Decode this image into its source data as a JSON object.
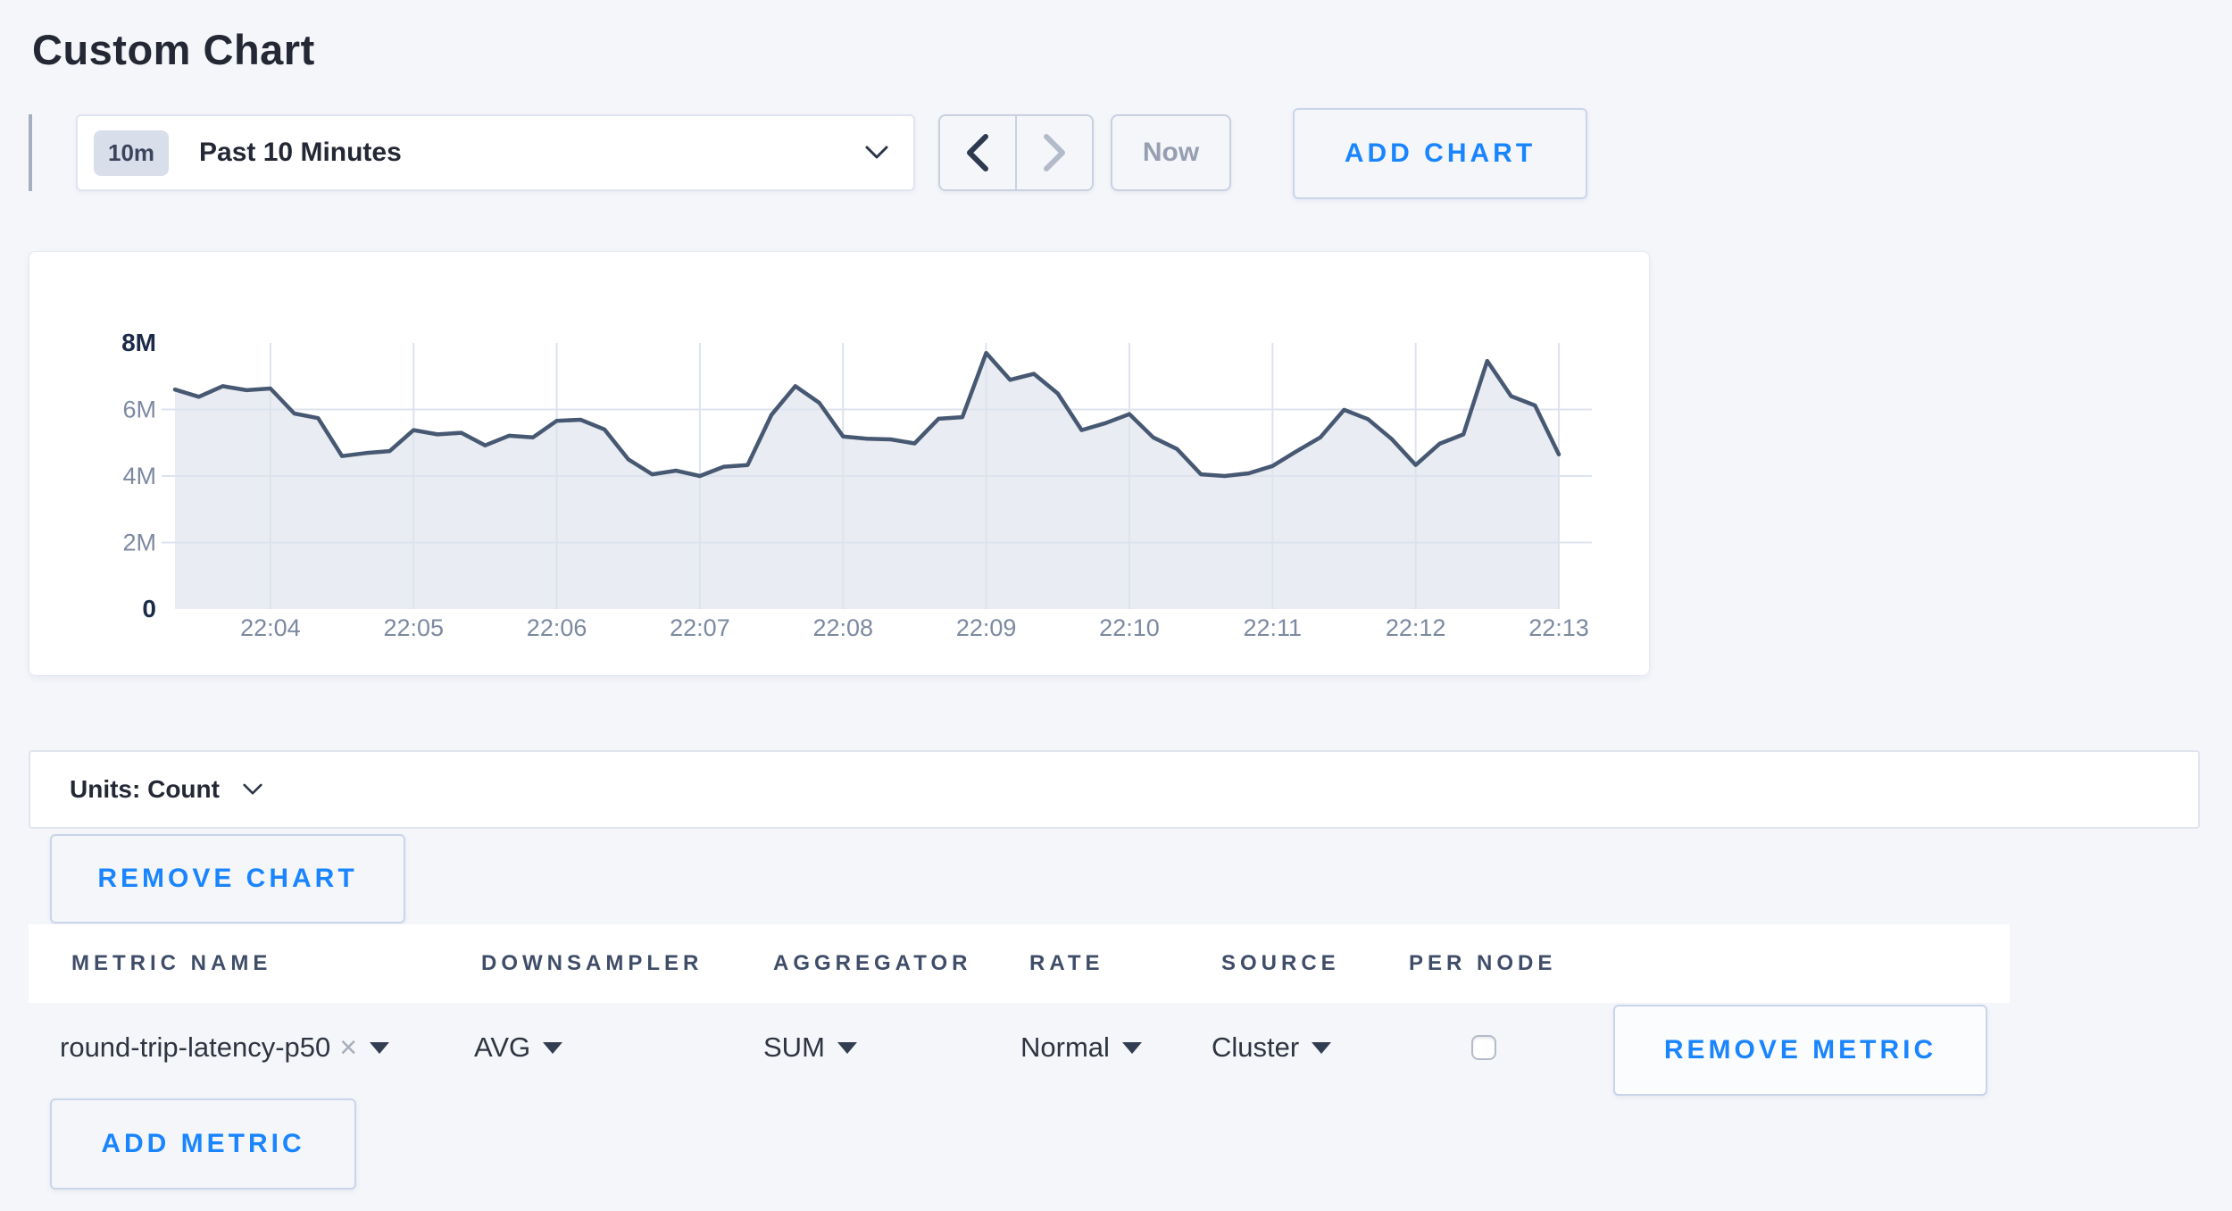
{
  "page": {
    "title": "Custom Chart"
  },
  "toolbar": {
    "time_badge": "10m",
    "time_label": "Past 10 Minutes",
    "now_label": "Now",
    "add_chart_label": "ADD CHART"
  },
  "chart_data": {
    "type": "area",
    "title": "",
    "xlabel": "",
    "ylabel": "",
    "legend": "off",
    "grid": "on",
    "x_ticks": [
      "22:04",
      "22:05",
      "22:06",
      "22:07",
      "22:08",
      "22:09",
      "22:10",
      "22:11",
      "22:12",
      "22:13"
    ],
    "first_tick_index": 4,
    "points_per_tick": 6,
    "y_ticks": [
      {
        "label": "8M",
        "value": 8,
        "emphasis": true
      },
      {
        "label": "6M",
        "value": 6,
        "emphasis": false
      },
      {
        "label": "4M",
        "value": 4,
        "emphasis": false
      },
      {
        "label": "2M",
        "value": 2,
        "emphasis": false
      },
      {
        "label": "0",
        "value": 0,
        "emphasis": true
      }
    ],
    "grid_values_millions": [
      2,
      4,
      6
    ],
    "ylim_millions": [
      0,
      8
    ],
    "series": [
      {
        "name": "round-trip-latency-p50",
        "line_color": "#475872",
        "fill_color": "#e9ecf2",
        "values_millions": [
          6.6,
          6.38,
          6.7,
          6.58,
          6.63,
          5.88,
          5.74,
          4.6,
          4.69,
          4.75,
          5.38,
          5.25,
          5.3,
          4.92,
          5.21,
          5.16,
          5.66,
          5.69,
          5.4,
          4.5,
          4.05,
          4.16,
          4.0,
          4.28,
          4.33,
          5.84,
          6.7,
          6.2,
          5.19,
          5.12,
          5.1,
          4.98,
          5.72,
          5.77,
          7.7,
          6.89,
          7.07,
          6.48,
          5.38,
          5.59,
          5.86,
          5.16,
          4.81,
          4.05,
          4.0,
          4.08,
          4.3,
          4.74,
          5.16,
          5.99,
          5.71,
          5.11,
          4.33,
          4.97,
          5.25,
          7.46,
          6.4,
          6.12,
          4.65
        ]
      }
    ],
    "grid_color": "#dde3ee"
  },
  "units_bar": {
    "label": "Units: Count"
  },
  "chart_actions": {
    "remove_chart_label": "REMOVE CHART"
  },
  "metrics_table": {
    "headers": [
      "METRIC NAME",
      "DOWNSAMPLER",
      "AGGREGATOR",
      "RATE",
      "SOURCE",
      "PER NODE"
    ],
    "row": {
      "metric_name": "round-trip-latency-p50",
      "close_icon": "×",
      "downsampler": "AVG",
      "aggregator": "SUM",
      "rate": "Normal",
      "source": "Cluster",
      "per_node_checked": false,
      "remove_label": "REMOVE METRIC"
    },
    "add_metric_label": "ADD METRIC"
  },
  "colors": {
    "accent_blue": "#1a85ff",
    "page_bg": "#f4f6fa"
  }
}
